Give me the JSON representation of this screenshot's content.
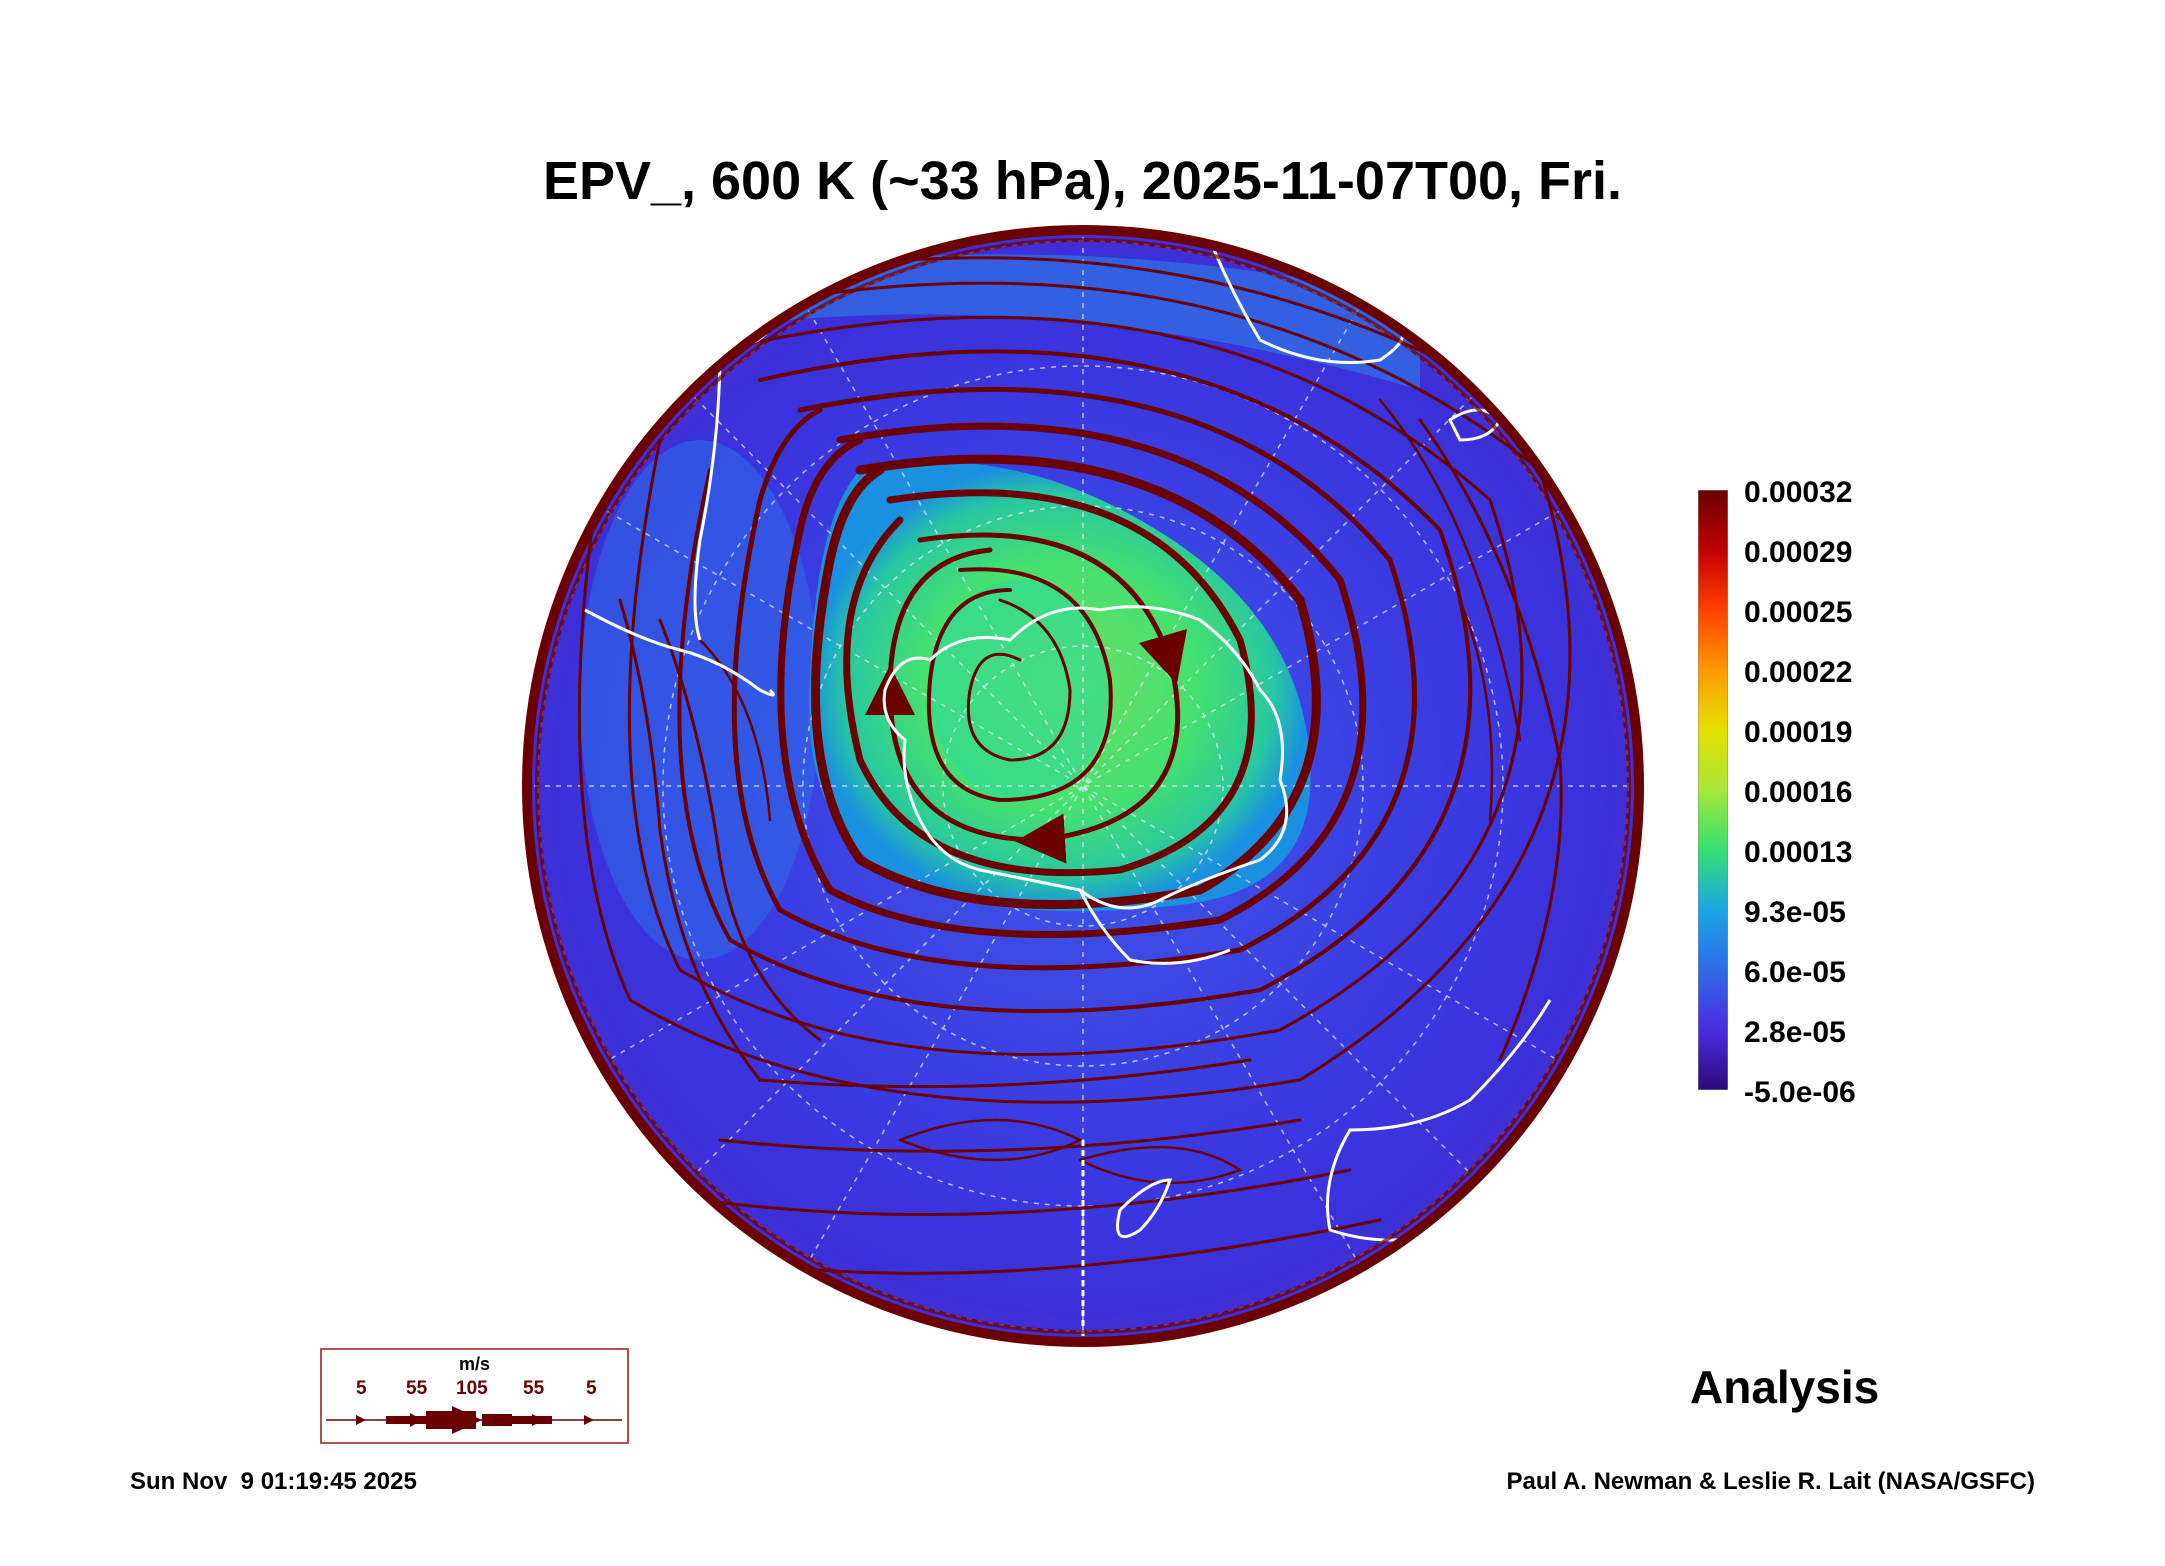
{
  "title": "EPV_, 600 K (~33 hPa), 2025-11-07T00, Fri.",
  "colorbar": {
    "labels": [
      "0.00032",
      "0.00029",
      "0.00025",
      "0.00022",
      "0.00019",
      "0.00016",
      "0.00013",
      "9.3e-05",
      "6.0e-05",
      "2.8e-05",
      "-5.0e-06"
    ],
    "colors": [
      "#6b0000",
      "#c00000",
      "#ff4000",
      "#ff9900",
      "#e6e000",
      "#a6e838",
      "#35e070",
      "#1aa6e6",
      "#2f6be8",
      "#4a2ce0",
      "#2a0a7a"
    ]
  },
  "wind_legend": {
    "unit": "m/s",
    "values": [
      "5",
      "55",
      "105",
      "55",
      "5"
    ]
  },
  "analysis_label": "Analysis",
  "footer": {
    "timestamp": "Sun Nov  9 01:19:45 2025",
    "credit": "Paul A. Newman & Leslie R. Lait (NASA/GSFC)"
  },
  "colors": {
    "streamline": "#6b0000",
    "vortex_core": "#3ee07a",
    "background_field": "#3a3ee0",
    "coastline": "#ffffff"
  }
}
